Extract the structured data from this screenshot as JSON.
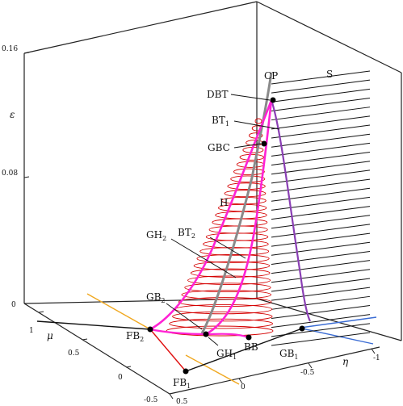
{
  "figure": {
    "axes": {
      "epsilon": {
        "label": "ε",
        "ticks": [
          "0.16",
          "0.08",
          "0"
        ]
      },
      "mu": {
        "label": "μ",
        "ticks": [
          "1",
          "0.5",
          "0",
          "-0.5"
        ]
      },
      "eta": {
        "label": "η",
        "ticks": [
          "0.5",
          "0",
          "-0.5",
          "-1"
        ]
      }
    },
    "labels": {
      "CP": "CP",
      "S": "S",
      "DBT": "DBT",
      "BT": "BT",
      "one": "1",
      "two": "2",
      "GBC": "GBC",
      "H": "H",
      "GH": "GH",
      "GB": "GB",
      "FB": "FB",
      "BB": "BB"
    },
    "colors": {
      "frame": "#222222",
      "hopf": "#d40000",
      "saddle": "#111111",
      "gh_curve": "#ff22d4",
      "bt_curve": "#888888",
      "purple_curve": "#8a3fb4",
      "orange": "#f0a820",
      "blue": "#3a6cd4",
      "fold_red": "#e01010"
    }
  }
}
